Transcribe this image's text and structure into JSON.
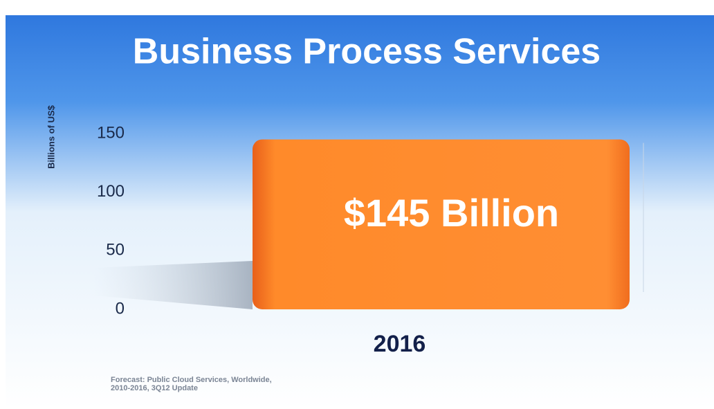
{
  "chart_data": {
    "type": "bar",
    "title": "Business Process Services",
    "y_label": "Billions of US$",
    "categories": [
      "2016"
    ],
    "values": [
      145
    ],
    "value_labels": [
      "$145 Billion"
    ],
    "color": "#ff8a2a",
    "ylim": [
      0,
      150
    ],
    "yticks": [
      0,
      50,
      100,
      150
    ],
    "grid": false,
    "source": "Forecast: Public Cloud Services, Worldwide, 2010-2016, 3Q12 Update"
  }
}
